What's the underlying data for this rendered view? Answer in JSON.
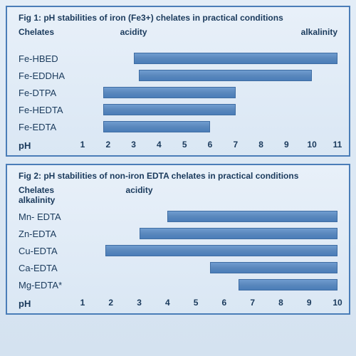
{
  "colors": {
    "panel_border": "#4a7db8",
    "bar_fill": "#5a88bd",
    "bar_border": "#3f6da3",
    "text": "#1a3a5c",
    "bg_top": "#e3edf7",
    "bg_bottom": "#d4e2f0"
  },
  "typography": {
    "title_fontsize": 12,
    "label_fontsize": 13,
    "tick_fontsize": 12,
    "family": "Arial"
  },
  "fig1": {
    "title": "Fig 1: pH stabilities of iron (Fe3+)  chelates in practical  conditions",
    "col_header": "Chelates",
    "left_header": "acidity",
    "right_header": "alkalinity",
    "axis_label": "pH",
    "xmin": 1,
    "xmax": 11,
    "ticks": [
      1,
      2,
      3,
      4,
      5,
      6,
      7,
      8,
      9,
      10,
      11
    ],
    "rows": [
      {
        "name": "Fe-HBED",
        "start": 3.0,
        "end": 11.0
      },
      {
        "name": "Fe-EDDHA",
        "start": 3.2,
        "end": 10.0
      },
      {
        "name": "Fe-DTPA",
        "start": 1.8,
        "end": 7.0
      },
      {
        "name": "Fe-HEDTA",
        "start": 1.8,
        "end": 7.0
      },
      {
        "name": "Fe-EDTA",
        "start": 1.8,
        "end": 6.0
      }
    ]
  },
  "fig2": {
    "title": "Fig 2: pH stabilities of non-iron EDTA chelates in practical  conditions",
    "col_header": "Chelates",
    "sub_header": "alkalinity",
    "left_header": "acidity",
    "axis_label": "pH",
    "xmin": 1,
    "xmax": 10,
    "ticks": [
      1,
      2,
      3,
      4,
      5,
      6,
      7,
      8,
      9,
      10
    ],
    "rows": [
      {
        "name": "Mn- EDTA",
        "start": 4.0,
        "end": 10.0
      },
      {
        "name": "Zn-EDTA",
        "start": 3.0,
        "end": 10.0
      },
      {
        "name": "Cu-EDTA",
        "start": 1.8,
        "end": 10.0
      },
      {
        "name": "Ca-EDTA",
        "start": 5.5,
        "end": 10.0
      },
      {
        "name": "Mg-EDTA*",
        "start": 6.5,
        "end": 10.0
      }
    ]
  }
}
